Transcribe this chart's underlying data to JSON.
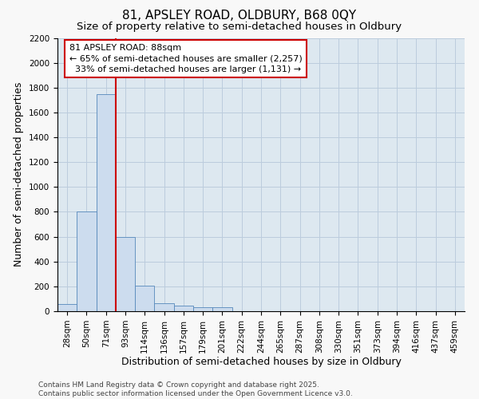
{
  "title_line1": "81, APSLEY ROAD, OLDBURY, B68 0QY",
  "title_line2": "Size of property relative to semi-detached houses in Oldbury",
  "xlabel": "Distribution of semi-detached houses by size in Oldbury",
  "ylabel": "Number of semi-detached properties",
  "footer": "Contains HM Land Registry data © Crown copyright and database right 2025.\nContains public sector information licensed under the Open Government Licence v3.0.",
  "categories": [
    "28sqm",
    "50sqm",
    "71sqm",
    "93sqm",
    "114sqm",
    "136sqm",
    "157sqm",
    "179sqm",
    "201sqm",
    "222sqm",
    "244sqm",
    "265sqm",
    "287sqm",
    "308sqm",
    "330sqm",
    "351sqm",
    "373sqm",
    "394sqm",
    "416sqm",
    "437sqm",
    "459sqm"
  ],
  "values": [
    55,
    800,
    1750,
    600,
    205,
    65,
    42,
    30,
    30,
    0,
    0,
    0,
    0,
    0,
    0,
    0,
    0,
    0,
    0,
    0,
    0
  ],
  "bar_color": "#ccdcee",
  "bar_edge_color": "#5588bb",
  "vline_color": "#cc0000",
  "vline_x": 2.5,
  "annotation_text": "81 APSLEY ROAD: 88sqm\n← 65% of semi-detached houses are smaller (2,257)\n  33% of semi-detached houses are larger (1,131) →",
  "annotation_box_facecolor": "#ffffff",
  "annotation_box_edgecolor": "#cc0000",
  "ylim": [
    0,
    2200
  ],
  "yticks": [
    0,
    200,
    400,
    600,
    800,
    1000,
    1200,
    1400,
    1600,
    1800,
    2000,
    2200
  ],
  "grid_color": "#bbccdd",
  "plot_bg_color": "#dde8f0",
  "fig_bg_color": "#f8f8f8",
  "title_fontsize": 11,
  "subtitle_fontsize": 9.5,
  "axis_label_fontsize": 9,
  "tick_fontsize": 7.5,
  "annotation_fontsize": 8,
  "footer_fontsize": 6.5
}
